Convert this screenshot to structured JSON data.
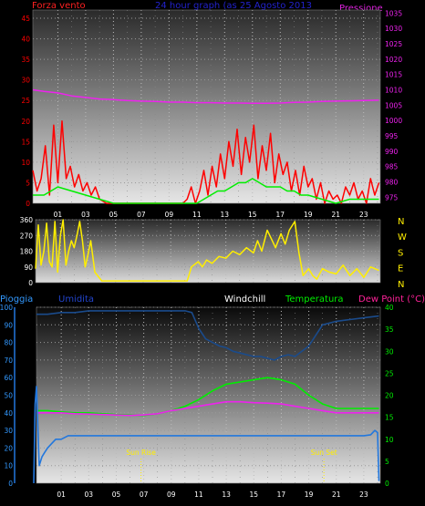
{
  "header": {
    "left_label": "Forza vento",
    "title": "24 hour graph (as  25 Agosto 2013",
    "right_label": "Pressione"
  },
  "colors": {
    "wind": "#ff0000",
    "gust": "#ff0000",
    "avg_wind": "#00ee00",
    "pressure": "#ee22ee",
    "direction": "#ffee00",
    "temperature": "#00ee00",
    "dew_point": "#ee22ee",
    "humidity": "#1a4b8c",
    "rain": "#2277dd",
    "sun_marker": "#ffee00",
    "header_title": "#2222cc",
    "header_left": "#ff2222",
    "header_right": "#dd22dd",
    "label_pioggia": "#3399ff",
    "label_umidita": "#2244cc",
    "label_windchill": "#ffffff",
    "label_temperatura": "#00ee00",
    "label_dewpoint": "#ff2299"
  },
  "panels": {
    "direction": {
      "compass_labels": [
        "N",
        "W",
        "S",
        "E",
        "N"
      ]
    },
    "temp": {
      "label_pioggia": "Pioggia",
      "label_umidita": "Umidita",
      "label_windchill": "Windchill",
      "label_temperatura": "Temperatura",
      "label_dewpoint": "Dew Point (°C)",
      "sun_rise": "Sun Rise",
      "sun_set": "Sun Set",
      "sun_rise_hour": 6.8,
      "sun_set_hour": 20.1
    }
  },
  "chart_data": [
    {
      "id": "wind",
      "type": "line",
      "title": "",
      "x_ticks": [
        "01",
        "03",
        "05",
        "07",
        "09",
        "11",
        "13",
        "15",
        "17",
        "19",
        "21",
        "23"
      ],
      "x_range_hours": [
        -0.8,
        24.2
      ],
      "y_ticks": [
        0,
        5,
        10,
        15,
        20,
        25,
        30,
        35,
        40,
        45
      ],
      "ylim": [
        0,
        47
      ],
      "y2_ticks": [
        975,
        980,
        985,
        990,
        995,
        1000,
        1005,
        1010,
        1015,
        1020,
        1025,
        1030,
        1035
      ],
      "y2lim": [
        973,
        1036
      ],
      "series": [
        {
          "role": "gust",
          "color_key": "wind",
          "x": [
            -0.8,
            -0.5,
            -0.2,
            0.1,
            0.4,
            0.7,
            1.0,
            1.3,
            1.6,
            1.9,
            2.2,
            2.5,
            2.8,
            3.1,
            3.4,
            3.7,
            4.0,
            4.5,
            5,
            6,
            7,
            8,
            9,
            9.5,
            10,
            10.3,
            10.6,
            10.9,
            11.2,
            11.5,
            11.8,
            12.1,
            12.4,
            12.7,
            13.0,
            13.3,
            13.6,
            13.9,
            14.2,
            14.5,
            14.8,
            15.1,
            15.4,
            15.7,
            16.0,
            16.3,
            16.6,
            16.9,
            17.2,
            17.5,
            17.8,
            18.1,
            18.4,
            18.7,
            19.0,
            19.3,
            19.6,
            19.9,
            20.2,
            20.5,
            20.8,
            21.1,
            21.4,
            21.7,
            22.0,
            22.3,
            22.6,
            22.9,
            23.2,
            23.5,
            23.8,
            24.1
          ],
          "y": [
            8,
            3,
            6,
            14,
            2,
            19,
            5,
            20,
            6,
            9,
            4,
            7,
            3,
            5,
            2,
            4,
            1,
            0,
            0,
            0,
            0,
            0,
            0,
            0,
            0,
            1,
            4,
            0,
            3,
            8,
            2,
            9,
            4,
            12,
            6,
            15,
            9,
            18,
            7,
            16,
            10,
            19,
            6,
            14,
            8,
            17,
            5,
            12,
            7,
            10,
            3,
            8,
            2,
            9,
            4,
            6,
            1,
            5,
            0,
            3,
            1,
            2,
            0,
            4,
            2,
            5,
            1,
            3,
            0,
            6,
            2,
            5
          ]
        },
        {
          "role": "avg_wind",
          "color_key": "avg_wind",
          "x": [
            -0.8,
            0,
            1,
            2,
            3,
            4,
            5,
            6,
            7,
            8,
            9,
            10,
            11,
            11.5,
            12,
            12.5,
            13,
            13.5,
            14,
            14.5,
            15,
            15.5,
            16,
            16.5,
            17,
            17.5,
            18,
            18.5,
            19,
            20,
            21,
            22,
            23,
            24.1
          ],
          "y": [
            2,
            2,
            4,
            3,
            2,
            1,
            0,
            0,
            0,
            0,
            0,
            0,
            0,
            1,
            2,
            3,
            3,
            4,
            5,
            5,
            6,
            5,
            4,
            4,
            4,
            3,
            3,
            2,
            2,
            1,
            0,
            1,
            1,
            1
          ]
        },
        {
          "role": "pressure",
          "color_key": "pressure",
          "axis": "y2",
          "x": [
            -0.8,
            0,
            1,
            2,
            3,
            4,
            5,
            6,
            7,
            8,
            9,
            10,
            11,
            12,
            13,
            14,
            15,
            16,
            17,
            18,
            19,
            20,
            21,
            22,
            23,
            24.1
          ],
          "y": [
            1010,
            1009.5,
            1009,
            1008,
            1007.5,
            1007,
            1006.8,
            1006.5,
            1006.3,
            1006.2,
            1006,
            1006,
            1005.8,
            1005.8,
            1005.7,
            1005.7,
            1005.6,
            1005.6,
            1005.7,
            1005.9,
            1006,
            1006.2,
            1006.3,
            1006.4,
            1006.5,
            1006.6
          ]
        }
      ]
    },
    {
      "id": "direction",
      "type": "line",
      "title": "",
      "y_ticks": [
        0,
        90,
        180,
        270,
        360
      ],
      "ylim": [
        0,
        360
      ],
      "series": [
        {
          "role": "direction",
          "color_key": "direction",
          "x": [
            -0.8,
            -0.6,
            -0.4,
            -0.2,
            0.0,
            0.2,
            0.4,
            0.6,
            0.8,
            1.0,
            1.2,
            1.4,
            1.6,
            1.8,
            2.0,
            2.2,
            2.4,
            2.6,
            2.8,
            3.0,
            3.2,
            3.5,
            4,
            5,
            6,
            7,
            8,
            9,
            9.5,
            10,
            10.2,
            10.5,
            11,
            11.3,
            11.6,
            12,
            12.5,
            13,
            13.5,
            14,
            14.5,
            15,
            15.3,
            15.6,
            16,
            16.3,
            16.6,
            17,
            17.3,
            17.6,
            18,
            18.3,
            18.6,
            19,
            19.3,
            19.6,
            20,
            20.5,
            21,
            21.5,
            22,
            22.5,
            23,
            23.5,
            24.1
          ],
          "y": [
            80,
            330,
            100,
            180,
            340,
            120,
            90,
            350,
            60,
            270,
            360,
            100,
            180,
            240,
            200,
            270,
            350,
            240,
            90,
            160,
            240,
            60,
            10,
            10,
            10,
            10,
            10,
            10,
            10,
            10,
            10,
            90,
            120,
            90,
            130,
            110,
            150,
            140,
            180,
            160,
            200,
            170,
            240,
            180,
            300,
            250,
            200,
            280,
            220,
            300,
            350,
            170,
            40,
            80,
            40,
            20,
            80,
            60,
            50,
            100,
            40,
            80,
            30,
            90,
            70
          ]
        }
      ]
    },
    {
      "id": "temperature",
      "type": "line",
      "title": "",
      "y_ticks": [
        0,
        10,
        20,
        30,
        40,
        50,
        60,
        70,
        80,
        90,
        100
      ],
      "ylim": [
        0,
        100
      ],
      "y2_ticks": [
        0,
        5,
        10,
        15,
        20,
        25,
        30,
        35,
        40
      ],
      "y2lim": [
        0,
        40
      ],
      "series": [
        {
          "role": "humidity",
          "color_key": "humidity",
          "x": [
            -0.8,
            0,
            1,
            2,
            3,
            4,
            5,
            6,
            7,
            8,
            9,
            10,
            10.5,
            11,
            11.5,
            12,
            12.5,
            13,
            13.5,
            14,
            14.5,
            15,
            15.5,
            16,
            16.5,
            17,
            17.5,
            18,
            18.5,
            19,
            19.5,
            20,
            21,
            22,
            23,
            24.1
          ],
          "y": [
            96,
            96,
            97,
            97,
            98,
            98,
            98,
            98,
            98,
            98,
            98,
            98,
            97,
            88,
            82,
            80,
            78,
            77,
            75,
            74,
            73,
            72,
            72,
            71,
            70,
            72,
            73,
            72,
            75,
            78,
            84,
            90,
            92,
            93,
            94,
            95
          ]
        },
        {
          "role": "temperature",
          "color_key": "temperature",
          "axis": "y2",
          "x": [
            -0.8,
            0,
            1,
            2,
            3,
            4,
            5,
            6,
            7,
            8,
            9,
            10,
            11,
            12,
            13,
            14,
            15,
            16,
            17,
            18,
            19,
            20,
            21,
            22,
            23,
            24.1
          ],
          "y": [
            16.5,
            16.5,
            16.2,
            16,
            16,
            15.8,
            15.6,
            15.5,
            15.4,
            15.8,
            16.5,
            17.5,
            19,
            21,
            22.5,
            23,
            23.5,
            24,
            23.5,
            22.5,
            20,
            18,
            17,
            17,
            17,
            17
          ]
        },
        {
          "role": "dew_point",
          "color_key": "dew_point",
          "axis": "y2",
          "x": [
            -0.8,
            0,
            1,
            2,
            3,
            4,
            5,
            6,
            7,
            8,
            9,
            10,
            11,
            12,
            13,
            14,
            15,
            16,
            17,
            18,
            19,
            20,
            21,
            22,
            23,
            24.1
          ],
          "y": [
            16,
            16,
            16,
            15.8,
            15.7,
            15.6,
            15.5,
            15.4,
            15.5,
            15.8,
            16.5,
            17,
            17.5,
            18,
            18.5,
            18.5,
            18.3,
            18.2,
            18,
            17.5,
            17,
            16.5,
            16,
            16,
            16,
            16
          ]
        },
        {
          "role": "rain",
          "color_key": "rain",
          "axis": "y2",
          "x": [
            -1.0,
            -0.9,
            -0.8,
            -0.6,
            -0.4,
            -0.2,
            0,
            0.3,
            0.6,
            1.0,
            1.5,
            2,
            2.5,
            3,
            4,
            5,
            6,
            7,
            8,
            9,
            10,
            11,
            12,
            13,
            14,
            15,
            16,
            17,
            18,
            19,
            20,
            21,
            22,
            23,
            23.5,
            23.8,
            24.0,
            24.1
          ],
          "y": [
            0,
            18,
            22,
            4,
            6,
            7,
            8,
            9,
            10,
            10,
            10.8,
            10.8,
            10.8,
            10.8,
            10.8,
            10.8,
            10.8,
            10.8,
            10.8,
            10.8,
            10.8,
            10.8,
            10.8,
            10.8,
            10.8,
            10.8,
            10.8,
            10.8,
            10.8,
            10.8,
            10.8,
            10.8,
            10.8,
            10.8,
            11,
            12,
            11.5,
            0.5
          ]
        }
      ]
    }
  ]
}
